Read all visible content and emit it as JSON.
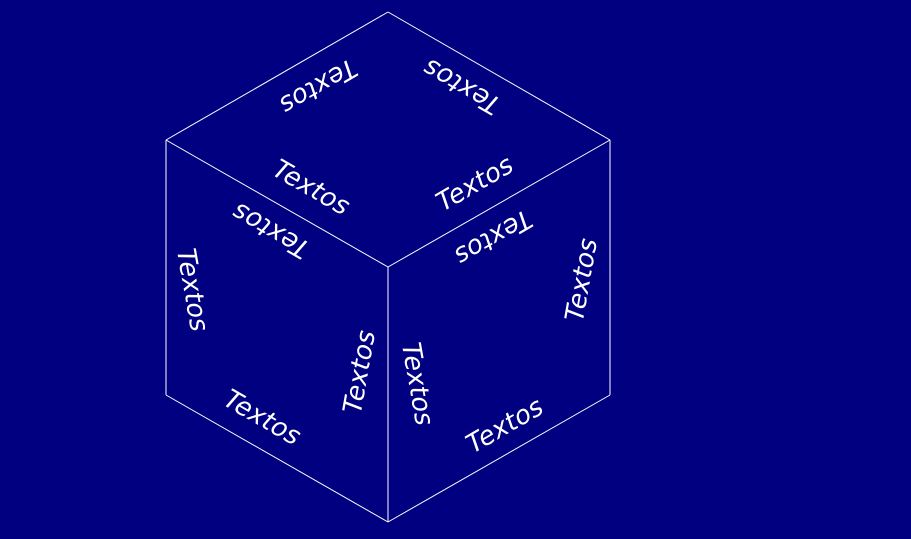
{
  "colors": {
    "background": "#000080",
    "lines": "#ffffff",
    "text": "#ffffff"
  },
  "labels": [
    "Textos",
    "Textos",
    "Textos",
    "Textos",
    "Textos",
    "Textos",
    "Textos",
    "Textos",
    "Textos",
    "Textos",
    "Textos",
    "Textos"
  ]
}
